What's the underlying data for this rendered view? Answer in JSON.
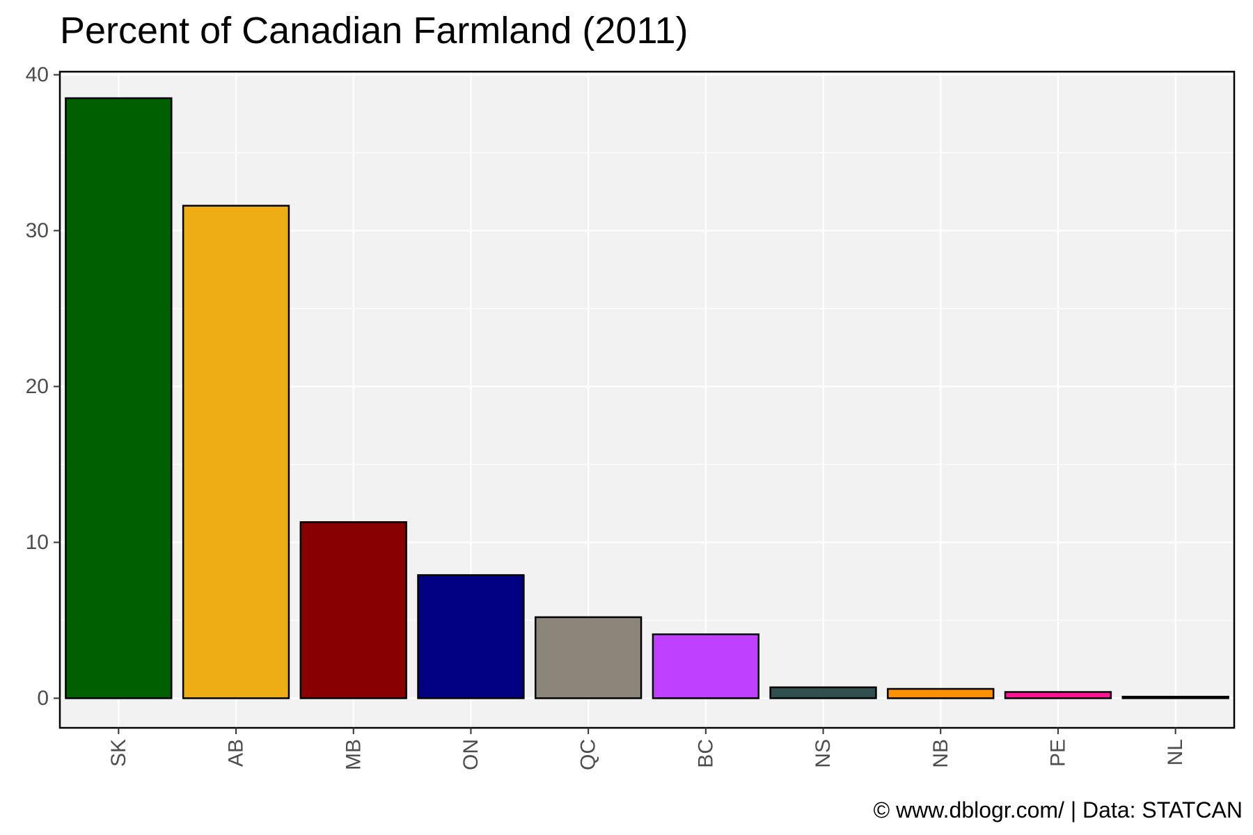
{
  "chart_data": {
    "type": "bar",
    "title": "Percent of Canadian Farmland (2011)",
    "xlabel": "",
    "ylabel": "",
    "categories": [
      "SK",
      "AB",
      "MB",
      "ON",
      "QC",
      "BC",
      "NS",
      "NB",
      "PE",
      "NL"
    ],
    "values": [
      38.5,
      31.6,
      11.3,
      7.9,
      5.2,
      4.1,
      0.7,
      0.6,
      0.4,
      0.1
    ],
    "colors": [
      "#006000",
      "#EEAD14",
      "#880000",
      "#000080",
      "#8C857A",
      "#C040FF",
      "#2F4F4F",
      "#FF9000",
      "#FF1493",
      "#101010"
    ],
    "ylim": [
      -1.9,
      40.2
    ],
    "yticks": [
      0,
      10,
      20,
      30,
      40
    ],
    "grid": true,
    "legend": "none",
    "panel_color": "#F2F2F2",
    "grid_color": "#FFFFFF"
  },
  "caption": "© www.dblogr.com/  |  Data: STATCAN"
}
